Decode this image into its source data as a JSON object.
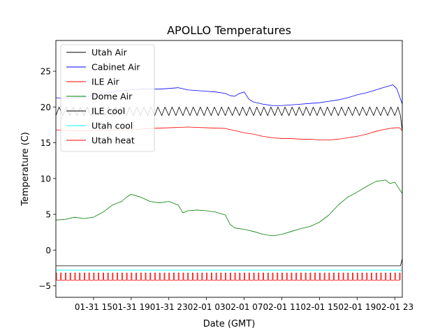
{
  "chart_data": {
    "type": "line",
    "title": "APOLLO Temperatures",
    "xlabel": "Date (GMT)",
    "ylabel": "Temperature (C)",
    "ylim": [
      -6.6,
      29.3
    ],
    "xlim_hours": [
      11.0,
      47.8
    ],
    "x_unit": "hours since 01-31 00:00 GMT",
    "grid": false,
    "legend_position": "top-left",
    "x_ticks": [
      {
        "hours": 15,
        "label": "01-31 15"
      },
      {
        "hours": 19,
        "label": "01-31 19"
      },
      {
        "hours": 23,
        "label": "01-31 23"
      },
      {
        "hours": 27,
        "label": "02-01 03"
      },
      {
        "hours": 31,
        "label": "02-01 07"
      },
      {
        "hours": 35,
        "label": "02-01 11"
      },
      {
        "hours": 39,
        "label": "02-01 15"
      },
      {
        "hours": 43,
        "label": "02-01 19"
      },
      {
        "hours": 47,
        "label": "02-01 23"
      }
    ],
    "y_ticks": [
      {
        "value": -5,
        "label": "−5"
      },
      {
        "value": 0,
        "label": "0"
      },
      {
        "value": 5,
        "label": "5"
      },
      {
        "value": 10,
        "label": "10"
      },
      {
        "value": 15,
        "label": "15"
      },
      {
        "value": 20,
        "label": "20"
      },
      {
        "value": 25,
        "label": "25"
      }
    ],
    "series": [
      {
        "name": "Utah Air",
        "color": "#000000",
        "kind": "line",
        "x": [
          11.0,
          47.6,
          47.8
        ],
        "y": [
          -2.2,
          -2.2,
          -1.2
        ]
      },
      {
        "name": "Cabinet Air",
        "color": "#0000ff",
        "kind": "line",
        "x": [
          11.0,
          12.0,
          13.0,
          14.0,
          15.0,
          16.0,
          17.0,
          18.0,
          19.0,
          20.0,
          21.0,
          22.0,
          23.0,
          24.0,
          25.0,
          26.0,
          27.0,
          28.0,
          29.0,
          29.5,
          30.0,
          30.5,
          31.0,
          31.5,
          32.0,
          33.0,
          34.0,
          35.0,
          36.0,
          37.0,
          38.0,
          39.0,
          40.0,
          41.0,
          42.0,
          43.0,
          44.0,
          45.0,
          46.0,
          46.8,
          47.2,
          47.5,
          47.8
        ],
        "y": [
          21.3,
          21.2,
          21.3,
          21.4,
          21.6,
          21.9,
          22.1,
          22.3,
          22.4,
          22.5,
          22.5,
          22.5,
          22.6,
          22.7,
          22.4,
          22.3,
          22.2,
          22.1,
          21.9,
          21.6,
          21.5,
          21.9,
          22.1,
          21.1,
          20.7,
          20.4,
          20.2,
          20.2,
          20.3,
          20.4,
          20.5,
          20.6,
          20.8,
          21.0,
          21.3,
          21.7,
          22.0,
          22.4,
          22.8,
          23.1,
          22.6,
          21.5,
          20.4
        ]
      },
      {
        "name": "ILE Air",
        "color": "#ff0000",
        "kind": "line",
        "x": [
          11.0,
          13.0,
          15.0,
          17.0,
          19.0,
          21.0,
          23.0,
          25.0,
          27.0,
          29.0,
          30.0,
          31.0,
          32.0,
          33.0,
          34.0,
          35.0,
          36.0,
          37.0,
          38.0,
          39.0,
          40.0,
          41.0,
          42.0,
          43.0,
          44.0,
          45.0,
          46.0,
          47.0,
          47.5,
          47.8
        ],
        "y": [
          16.8,
          16.7,
          16.7,
          16.8,
          16.8,
          17.0,
          17.1,
          17.2,
          17.1,
          17.0,
          16.7,
          16.4,
          16.2,
          15.9,
          15.7,
          15.6,
          15.6,
          15.5,
          15.5,
          15.4,
          15.4,
          15.5,
          15.7,
          15.9,
          16.2,
          16.6,
          16.9,
          17.1,
          17.1,
          16.7
        ]
      },
      {
        "name": "Dome Air",
        "color": "#008000",
        "kind": "line",
        "x": [
          11.0,
          12.0,
          13.0,
          14.0,
          15.0,
          16.0,
          17.0,
          18.0,
          18.5,
          19.0,
          19.5,
          20.0,
          21.0,
          22.0,
          23.0,
          24.0,
          24.5,
          25.0,
          26.0,
          27.0,
          28.0,
          29.0,
          29.5,
          30.0,
          31.0,
          32.0,
          33.0,
          34.0,
          35.0,
          36.0,
          37.0,
          38.0,
          39.0,
          40.0,
          41.0,
          42.0,
          43.0,
          44.0,
          45.0,
          46.0,
          46.5,
          47.0,
          47.5,
          47.8
        ],
        "y": [
          4.2,
          4.3,
          4.6,
          4.4,
          4.6,
          5.3,
          6.3,
          6.8,
          7.4,
          7.8,
          7.6,
          7.4,
          6.8,
          6.6,
          6.8,
          6.3,
          5.2,
          5.5,
          5.6,
          5.5,
          5.3,
          4.9,
          3.6,
          3.1,
          2.9,
          2.6,
          2.2,
          2.0,
          2.2,
          2.6,
          3.0,
          3.3,
          3.9,
          4.9,
          6.3,
          7.4,
          8.1,
          8.9,
          9.6,
          9.8,
          9.3,
          9.5,
          8.5,
          7.9
        ]
      },
      {
        "name": "ILE cool",
        "color": "#000000",
        "kind": "oscillation",
        "x_start": 11.0,
        "x_end": 47.6,
        "period_hours": 0.75,
        "low": 18.8,
        "high": 20.0,
        "end_x": [
          47.6,
          47.8
        ],
        "end_y": [
          18.8,
          16.6
        ]
      },
      {
        "name": "Utah cool",
        "color": "#00ffff",
        "kind": "line",
        "x": [
          11.0,
          47.8
        ],
        "y": [
          -2.8,
          -2.8
        ]
      },
      {
        "name": "Utah heat",
        "color": "#ff0000",
        "kind": "pulse",
        "x_start": 11.0,
        "x_end": 47.8,
        "period_hours": 0.5,
        "low": -4.2,
        "high": -3.2
      }
    ]
  }
}
